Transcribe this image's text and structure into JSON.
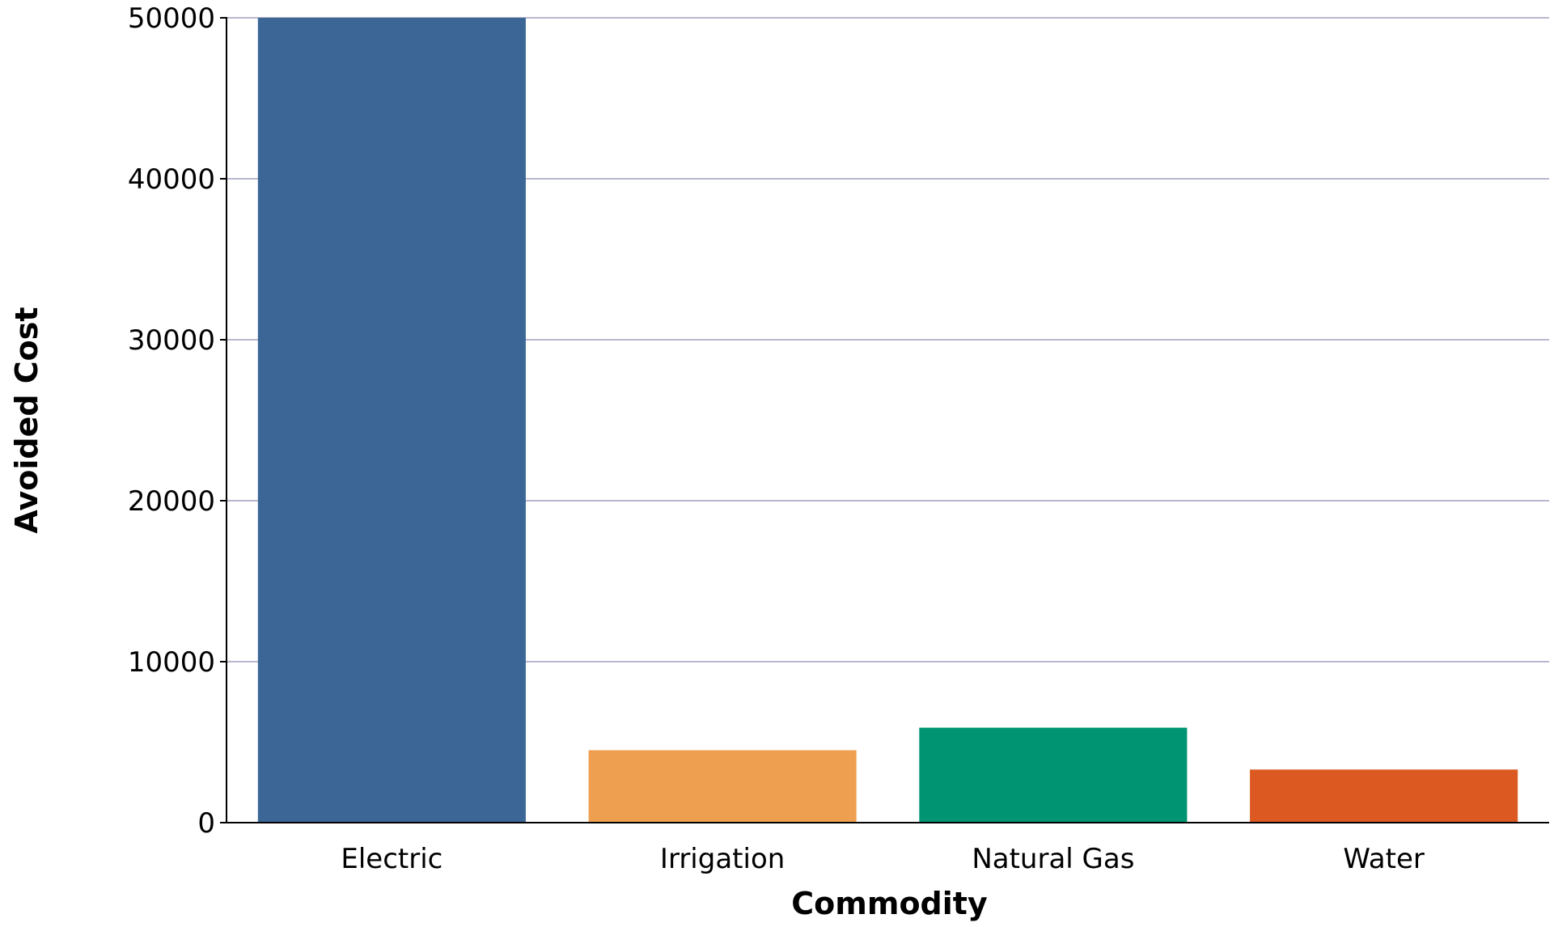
{
  "chart_data": {
    "type": "bar",
    "categories": [
      "Electric",
      "Irrigation",
      "Natural Gas",
      "Water"
    ],
    "values": [
      50000,
      4500,
      5900,
      3300
    ],
    "colors": [
      "#3b6696",
      "#eea050",
      "#009472",
      "#dc5a21"
    ],
    "title": "",
    "xlabel": "Commodity",
    "ylabel": "Avoided Cost",
    "ylim": [
      0,
      50000
    ],
    "yticks": [
      0,
      10000,
      20000,
      30000,
      40000,
      50000
    ],
    "grid": "horizontal",
    "gridline_color": "#b7b8cf",
    "legend": "none"
  }
}
